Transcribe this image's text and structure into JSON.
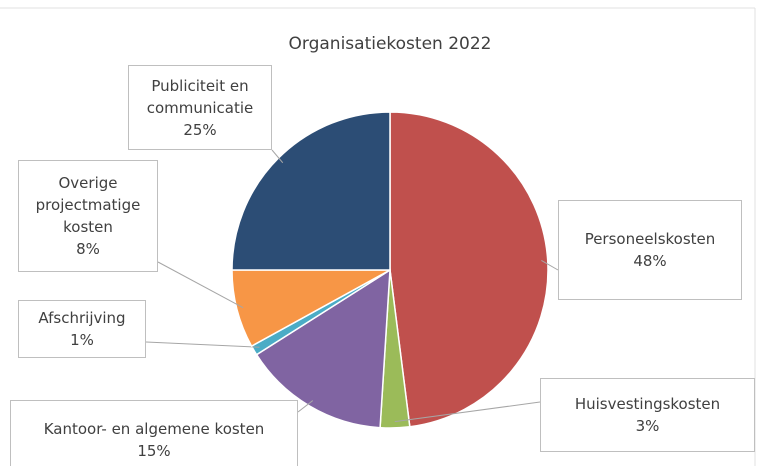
{
  "chart_data": {
    "type": "pie",
    "title": "Organisatiekosten 2022",
    "categories": [
      "Personeelskosten",
      "Huisvestingskosten",
      "Kantoor- en algemene kosten",
      "Afschrijving",
      "Overige projectmatige kosten",
      "Publiciteit en communicatie"
    ],
    "values": [
      48,
      3,
      15,
      1,
      8,
      25
    ],
    "value_labels": [
      "48%",
      "3%",
      "15%",
      "1%",
      "8%",
      "25%"
    ],
    "colors": [
      "#c0504d",
      "#9bbb59",
      "#8064a2",
      "#4bacc6",
      "#f79646",
      "#2c4d75"
    ]
  }
}
